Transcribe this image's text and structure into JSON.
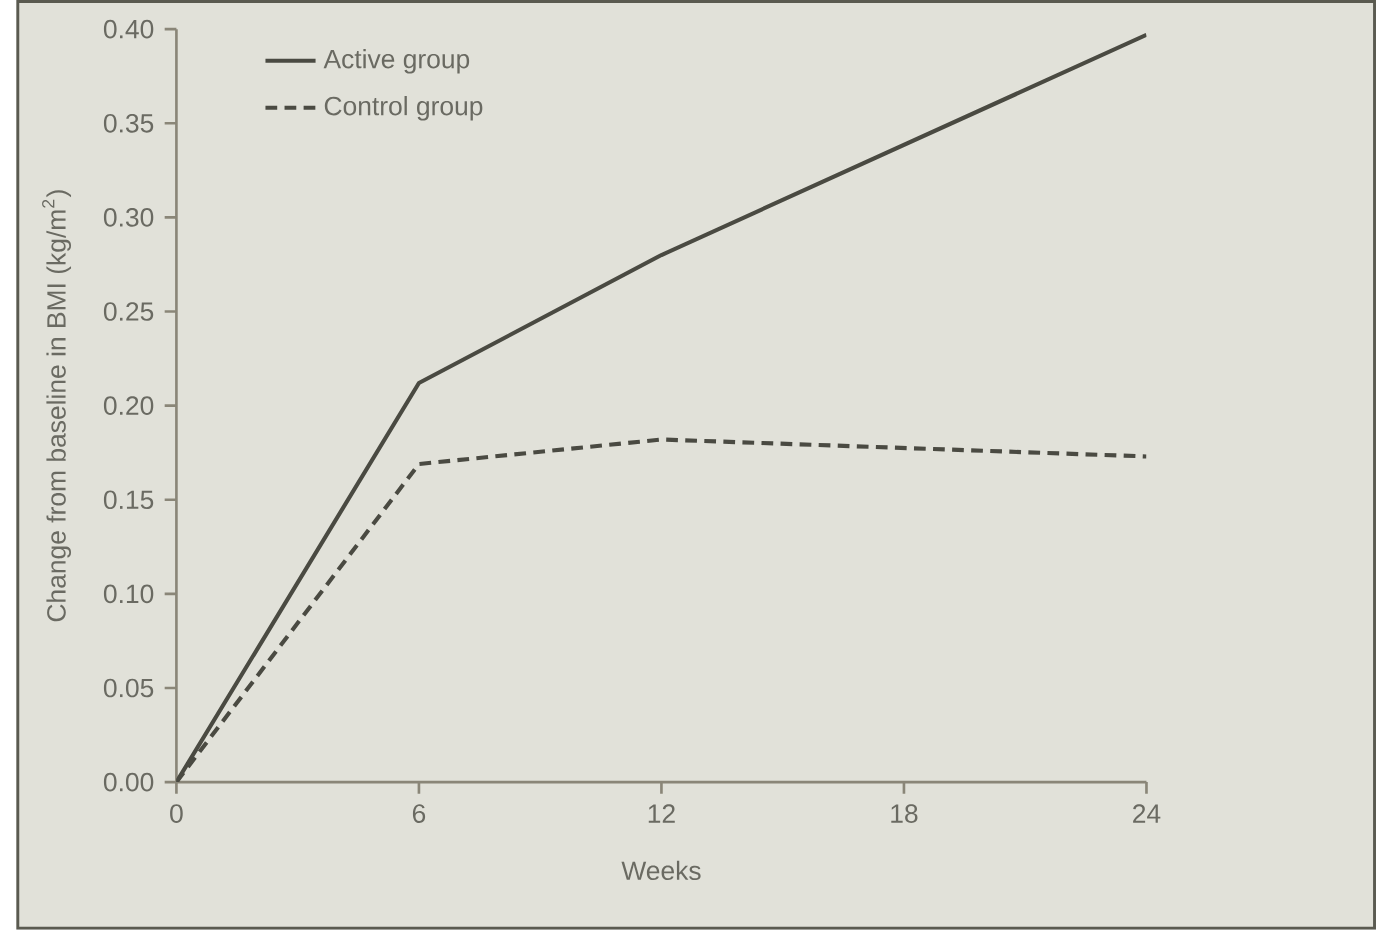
{
  "chart_data": {
    "type": "line",
    "xlabel": "Weeks",
    "ylabel": "Change from baseline in BMI (kg/m$^{2}$)",
    "x": [
      0,
      6,
      12,
      24
    ],
    "series": [
      {
        "name": "Active group",
        "color": "#4a4a42",
        "values": [
          0,
          0.212,
          0.28,
          0.397
        ],
        "line_style": "solid"
      },
      {
        "name": "Control group",
        "color": "#4a4a42",
        "values": [
          0,
          0.169,
          0.182,
          0.173
        ],
        "line_style": "dashed"
      }
    ],
    "xlim": [
      0,
      24
    ],
    "xticks": [
      0,
      6,
      12,
      18,
      24
    ],
    "ylim": [
      0,
      0.4
    ],
    "yticks": [
      {
        "value": 0,
        "label": "0.00"
      },
      {
        "value": 0.05,
        "label": "0.05"
      },
      {
        "value": 0.1,
        "label": "0.10"
      },
      {
        "value": 0.15,
        "label": "0.15"
      },
      {
        "value": 0.2,
        "label": "0.20"
      },
      {
        "value": 0.25,
        "label": "0.25"
      },
      {
        "value": 0.3,
        "label": "0.30"
      },
      {
        "value": 0.35,
        "label": "0.35"
      },
      {
        "value": 0.4,
        "label": "0.40"
      }
    ],
    "grid": false,
    "legend": "top left",
    "marker": "none"
  }
}
